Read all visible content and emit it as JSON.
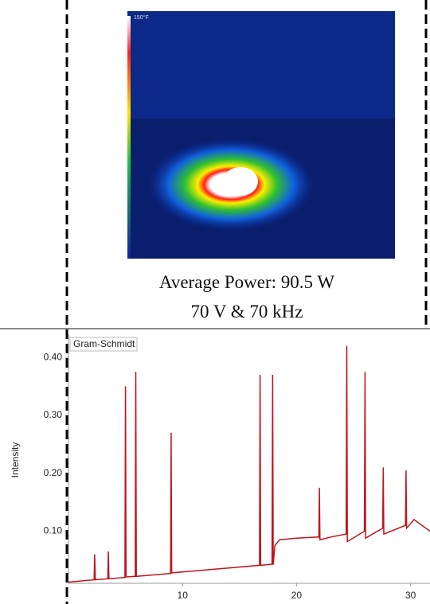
{
  "thermal_image": {
    "scale_label": "150°F",
    "caption": [
      "Average Power: 90.5 W",
      "70 V & 70 kHz"
    ]
  },
  "chart_data": {
    "type": "line",
    "title": "Gram-Schmidt",
    "y_label": "Intensity",
    "color": "#c0141c",
    "x": [
      0,
      2.25,
      2.3,
      2.35,
      3.45,
      3.5,
      3.55,
      4.95,
      5.0,
      5.05,
      5.85,
      5.9,
      5.95,
      8.95,
      9.0,
      9.05,
      12,
      16.75,
      16.8,
      16.85,
      17.85,
      17.9,
      17.95,
      18.1,
      18.5,
      20,
      21.95,
      22.0,
      22.05,
      23,
      24.35,
      24.4,
      24.45,
      25.95,
      26.0,
      26.05,
      27.55,
      27.6,
      27.65,
      29.55,
      29.6,
      29.65,
      30.3,
      31.7
    ],
    "values": [
      0.012,
      0.016,
      0.06,
      0.016,
      0.018,
      0.065,
      0.018,
      0.02,
      0.35,
      0.021,
      0.022,
      0.375,
      0.022,
      0.027,
      0.27,
      0.028,
      0.033,
      0.041,
      0.37,
      0.041,
      0.043,
      0.37,
      0.042,
      0.075,
      0.085,
      0.088,
      0.09,
      0.175,
      0.085,
      0.09,
      0.095,
      0.42,
      0.082,
      0.1,
      0.375,
      0.088,
      0.105,
      0.21,
      0.095,
      0.11,
      0.205,
      0.105,
      0.12,
      0.1
    ],
    "xlim": [
      0,
      31.7
    ],
    "ylim": [
      0.01,
      0.44
    ],
    "xticks": [
      10,
      20,
      30
    ],
    "yticks": [
      {
        "value": 0.1,
        "label": "0.10"
      },
      {
        "value": 0.2,
        "label": "0.20"
      },
      {
        "value": 0.3,
        "label": "0.30"
      },
      {
        "value": 0.4,
        "label": "0.40"
      }
    ]
  }
}
